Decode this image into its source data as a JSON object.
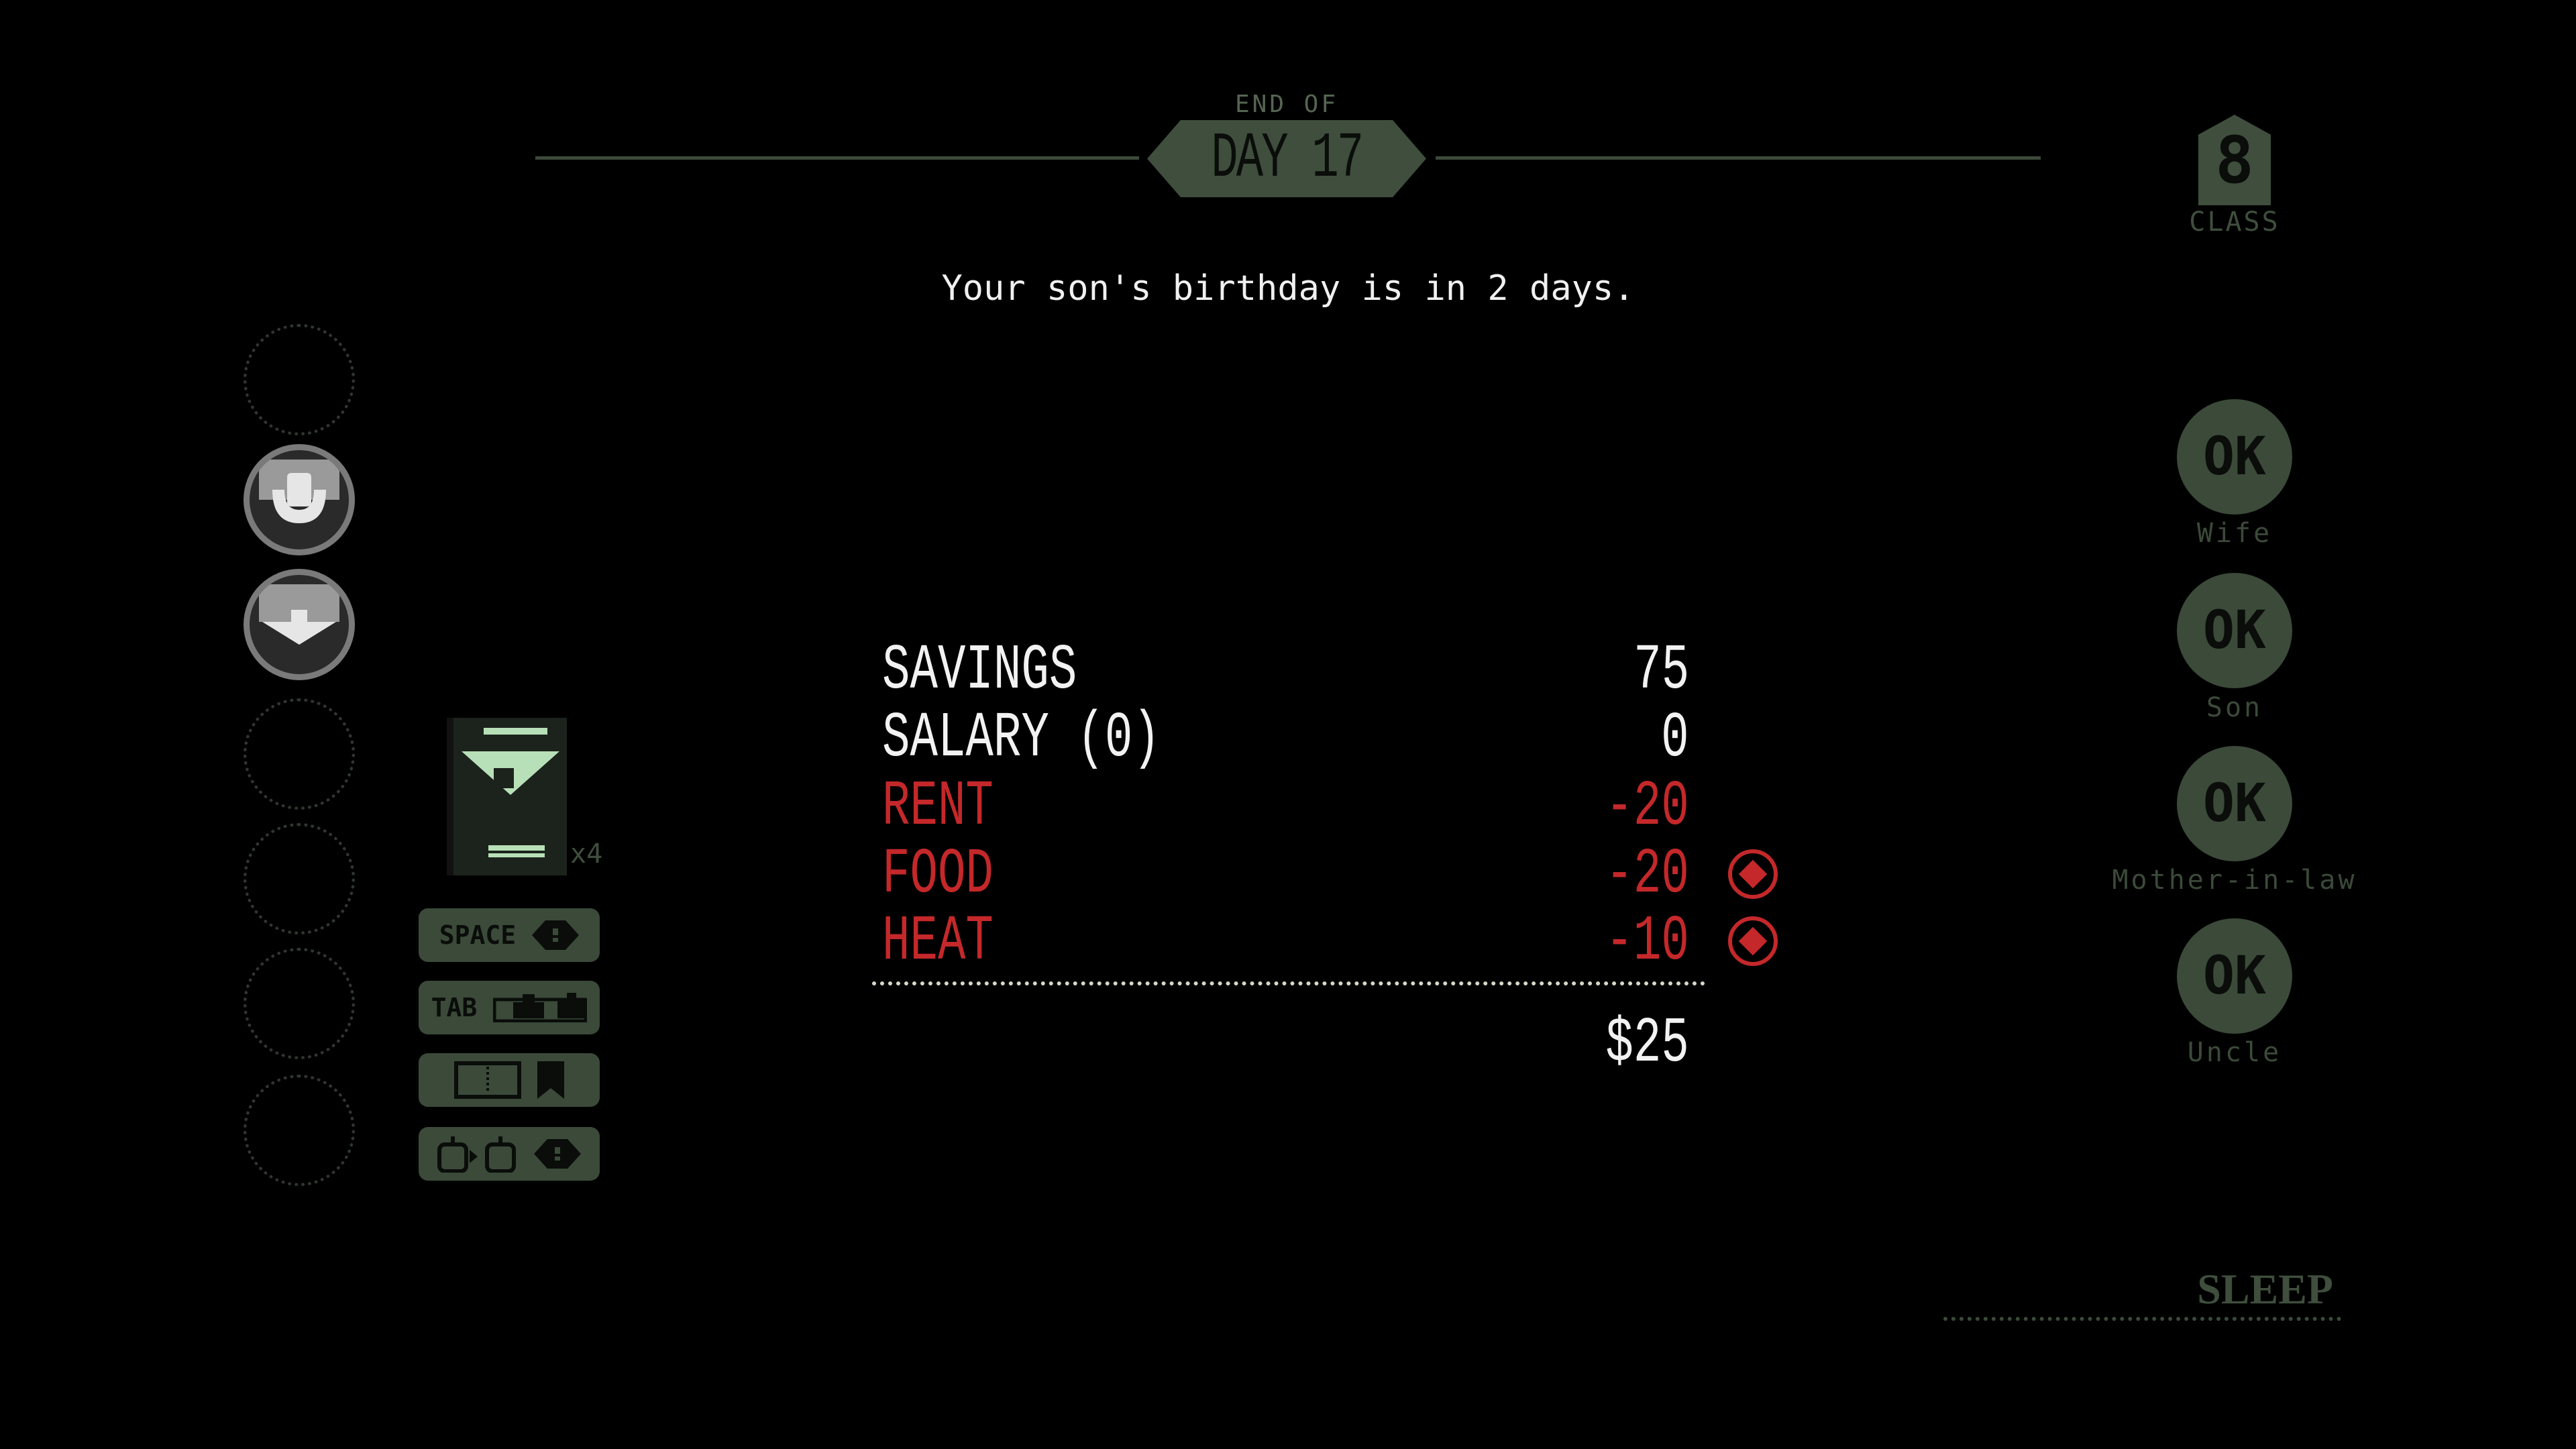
{
  "header": {
    "pre_title": "END OF",
    "title": "DAY 17"
  },
  "message": "Your son's birthday is in 2 days.",
  "class_badge": {
    "value": "8",
    "label": "CLASS"
  },
  "family": [
    {
      "status": "OK",
      "name": "Wife"
    },
    {
      "status": "OK",
      "name": "Son"
    },
    {
      "status": "OK",
      "name": "Mother-in-law"
    },
    {
      "status": "OK",
      "name": "Uncle"
    }
  ],
  "ledger": {
    "rows": [
      {
        "label": "SAVINGS",
        "value": "75",
        "type": "income",
        "toggle": false
      },
      {
        "label": "SALARY (0)",
        "value": "0",
        "type": "income",
        "toggle": false
      },
      {
        "label": "RENT",
        "value": "-20",
        "type": "expense",
        "toggle": false
      },
      {
        "label": "FOOD",
        "value": "-20",
        "type": "expense",
        "toggle": true
      },
      {
        "label": "HEAT",
        "value": "-10",
        "type": "expense",
        "toggle": true
      }
    ],
    "total": "$25"
  },
  "inventory": {
    "item_icon": "passport-eagle-card-icon",
    "quantity": "x4"
  },
  "key_hints": [
    {
      "key": "SPACE",
      "icon": "stamp-up-icon"
    },
    {
      "key": "TAB",
      "icon": "tray-icon"
    },
    {
      "key": "",
      "icon": "book-bookmark-icon"
    },
    {
      "key": "",
      "icon": "mouse-to-stamp-icon"
    }
  ],
  "stamp_slots": [
    "empty",
    "approved-stamp",
    "denied-stamp",
    "empty",
    "empty",
    "empty",
    "empty"
  ],
  "actions": {
    "sleep": "SLEEP"
  },
  "colors": {
    "accent_green": "#3f4e3d",
    "expense_red": "#c4282a",
    "text_white": "#f2f2f2",
    "background": "#000000"
  }
}
